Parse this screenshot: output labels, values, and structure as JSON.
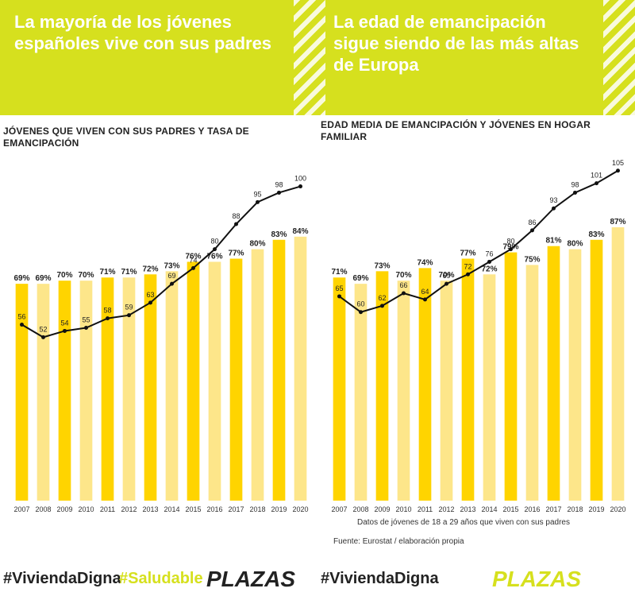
{
  "banner": {
    "left_text": "La mayoría de los jóvenes españoles vive con sus padres",
    "right_text": "La edad de emancipación sigue siendo de las más altas de Europa"
  },
  "footer": {
    "hashtag_left": "#ViviendaDigna",
    "hashtag_left_2": "#Saludable",
    "brand_left": "PLAZAS",
    "hashtag_right": "#ViviendaDigna",
    "brand_right": "PLAZAS"
  },
  "notes": {
    "right_1": "Datos de jóvenes de 18 a 29 años que viven con sus padres",
    "right_2": "Fuente: Eurostat / elaboración propia"
  },
  "colors": {
    "bar": "#ffd400",
    "bar_highlight": "#fde68a",
    "line": "#111111",
    "banner": "#d6e01e"
  },
  "chart_data": [
    {
      "type": "bar",
      "title": "Jóvenes que viven con sus padres y tasa de emancipación",
      "categories": [
        "2007",
        "2008",
        "2009",
        "2010",
        "2011",
        "2012",
        "2013",
        "2014",
        "2015",
        "2016",
        "2017",
        "2018",
        "2019",
        "2020"
      ],
      "series": [
        {
          "kind": "bar",
          "values": [
            69,
            69,
            70,
            70,
            71,
            71,
            72,
            73,
            76,
            76,
            77,
            80,
            83,
            84
          ]
        },
        {
          "kind": "line",
          "values": [
            56,
            52,
            54,
            55,
            58,
            59,
            63,
            69,
            74,
            80,
            88,
            95,
            98,
            100
          ]
        }
      ],
      "ylim": [
        0,
        110
      ],
      "grid": false
    },
    {
      "type": "bar",
      "title": "Edad media de emancipación y jóvenes en hogar familiar",
      "categories": [
        "2007",
        "2008",
        "2009",
        "2010",
        "2011",
        "2012",
        "2013",
        "2014",
        "2015",
        "2016",
        "2017",
        "2018",
        "2019",
        "2020"
      ],
      "series": [
        {
          "kind": "bar",
          "values": [
            71,
            69,
            73,
            70,
            74,
            70,
            77,
            72,
            79,
            75,
            81,
            80,
            83,
            87
          ]
        },
        {
          "kind": "line",
          "values": [
            65,
            60,
            62,
            66,
            64,
            69,
            72,
            76,
            80,
            86,
            93,
            98,
            101,
            105
          ]
        }
      ],
      "ylim": [
        0,
        110
      ],
      "grid": false
    }
  ]
}
